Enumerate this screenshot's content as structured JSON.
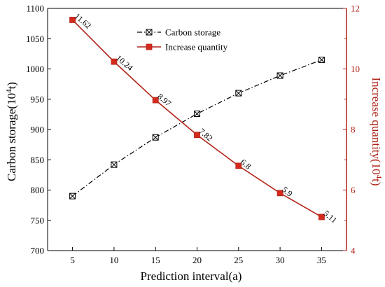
{
  "chart_data": {
    "type": "line",
    "xlabel": "Prediction interval(a)",
    "ylabel_left": "Carbon storage(10",
    "ylabel_left_sup": "4",
    "ylabel_left_tail": "t)",
    "ylabel_right": "Increase quantity(10",
    "ylabel_right_sup": "4",
    "ylabel_right_tail": "t)",
    "x": [
      5,
      10,
      15,
      20,
      25,
      30,
      35
    ],
    "xticks": [
      5,
      10,
      15,
      20,
      25,
      30,
      35
    ],
    "xlim": [
      2,
      38
    ],
    "ylim_left": [
      700,
      1100
    ],
    "yticks_left": [
      700,
      750,
      800,
      850,
      900,
      950,
      1000,
      1050,
      1100
    ],
    "ylim_right": [
      4,
      12
    ],
    "yticks_right": [
      4,
      6,
      8,
      10,
      12
    ],
    "legend_position": "top-center",
    "series": [
      {
        "name": "Carbon storage",
        "axis": "left",
        "color": "#000000",
        "line_style": "dash-dot",
        "marker": "boxed-x",
        "values": [
          790,
          842,
          887,
          926,
          960,
          989,
          1015
        ]
      },
      {
        "name": "Increase quantity",
        "axis": "right",
        "color": "#b02418",
        "marker_color": "#d42a1e",
        "line_style": "solid",
        "marker": "filled-square",
        "values": [
          11.62,
          10.24,
          8.97,
          7.82,
          6.8,
          5.9,
          5.11
        ],
        "labels": [
          "11.62",
          "10.24",
          "8.97",
          "7.82",
          "6.8",
          "5.9",
          "5.11"
        ]
      }
    ],
    "colors": {
      "left_axis": "#000000",
      "right_axis": "#b02418"
    }
  }
}
